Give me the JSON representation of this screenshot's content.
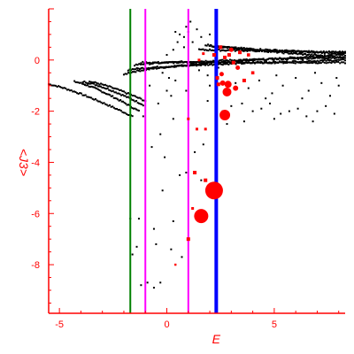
{
  "chart_data": {
    "type": "scatter",
    "xlabel": "E",
    "ylabel": "<J3>",
    "xlim": [
      -5.5,
      8.3
    ],
    "ylim": [
      -9.9,
      2.0
    ],
    "xticks": [
      -5,
      0,
      5
    ],
    "yticks": [
      0,
      -2,
      -4,
      -6,
      -8
    ],
    "xtick_labels": [
      "-5",
      "0",
      "5"
    ],
    "ytick_labels": [
      "0",
      "-2",
      "-4",
      "-6",
      "-8"
    ],
    "colors": {
      "axis": "#ff0000",
      "points": "#000000",
      "highlight": "#ff0000",
      "green_line": "#008000",
      "magenta_line": "#ff00ff",
      "blue_line": "#0000ff"
    },
    "vertical_lines": [
      {
        "x": -1.7,
        "color": "#008000",
        "width": 2
      },
      {
        "x": -1.0,
        "color": "#ff00ff",
        "width": 2
      },
      {
        "x": 1.0,
        "color": "#ff00ff",
        "width": 2
      },
      {
        "x": 2.3,
        "color": "#0000ff",
        "width": 4
      }
    ],
    "bands": [
      {
        "x0": -5.5,
        "x1": -1.6,
        "y0": -0.95,
        "y1": -2.2,
        "curv": 1.25,
        "n": 60
      },
      {
        "x0": -4.3,
        "x1": -1.3,
        "y0": -0.85,
        "y1": -2.0,
        "curv": 1.3,
        "n": 50
      },
      {
        "x0": -3.9,
        "x1": -1.1,
        "y0": -0.85,
        "y1": -1.75,
        "curv": 1.3,
        "n": 45
      },
      {
        "x0": -3.6,
        "x1": -1.0,
        "y0": -0.85,
        "y1": -1.6,
        "curv": 1.3,
        "n": 40
      },
      {
        "x0": -2.0,
        "x1": 8.3,
        "y0": -0.6,
        "y1": 0.2,
        "curv": 0.55,
        "n": 150
      },
      {
        "x0": -1.8,
        "x1": 8.3,
        "y0": -0.4,
        "y1": 0.0,
        "curv": 0.6,
        "n": 150
      },
      {
        "x0": -1.5,
        "x1": 8.3,
        "y0": -0.2,
        "y1": 0.1,
        "curv": 0.6,
        "n": 140
      },
      {
        "x0": -1.2,
        "x1": 8.3,
        "y0": -0.1,
        "y1": -0.1,
        "curv": 1.0,
        "n": 120
      },
      {
        "x0": 1.5,
        "x1": 8.3,
        "y0": 0.4,
        "y1": 0.3,
        "curv": 1.0,
        "n": 110
      },
      {
        "x0": 1.8,
        "x1": 8.3,
        "y0": 0.6,
        "y1": 0.1,
        "curv": 0.8,
        "n": 110
      },
      {
        "x0": 2.0,
        "x1": 8.3,
        "y0": 0.55,
        "y1": 0.25,
        "curv": 0.8,
        "n": 100
      }
    ],
    "points": [
      [
        -1.7,
        -6.2
      ],
      [
        -1.3,
        -6.2
      ],
      [
        -1.6,
        -7.6
      ],
      [
        -1.4,
        -7.3
      ],
      [
        -1.2,
        -8.8
      ],
      [
        -0.9,
        -8.7
      ],
      [
        -0.6,
        -8.9
      ],
      [
        -0.3,
        -8.7
      ],
      [
        -0.5,
        -7.2
      ],
      [
        -0.2,
        -5.1
      ],
      [
        0.3,
        -6.3
      ],
      [
        0.7,
        -7.7
      ],
      [
        0.2,
        -7.4
      ],
      [
        -0.6,
        -6.6
      ],
      [
        -0.7,
        -3.4
      ],
      [
        -0.3,
        -2.9
      ],
      [
        0.3,
        -2.3
      ],
      [
        -0.4,
        -1.7
      ],
      [
        -1.1,
        -2.2
      ],
      [
        0.2,
        -1.4
      ],
      [
        0.4,
        -0.8
      ],
      [
        0.1,
        -0.7
      ],
      [
        -0.8,
        -1.0
      ],
      [
        -0.2,
        -0.5
      ],
      [
        0.0,
        0.2
      ],
      [
        0.3,
        0.4
      ],
      [
        0.5,
        0.7
      ],
      [
        0.8,
        0.9
      ],
      [
        1.0,
        1.1
      ],
      [
        1.2,
        0.7
      ],
      [
        0.6,
        1.0
      ],
      [
        0.9,
        1.3
      ],
      [
        1.1,
        1.5
      ],
      [
        1.4,
        1.2
      ],
      [
        0.4,
        1.1
      ],
      [
        0.8,
        0.5
      ],
      [
        1.6,
        0.9
      ],
      [
        2.0,
        1.0
      ],
      [
        1.5,
        -0.4
      ],
      [
        1.1,
        -0.2
      ],
      [
        0.9,
        -1.2
      ],
      [
        2.0,
        -1.0
      ],
      [
        1.9,
        -1.6
      ],
      [
        2.6,
        -2.0
      ],
      [
        3.0,
        -1.8
      ],
      [
        3.5,
        -1.7
      ],
      [
        4.0,
        -2.0
      ],
      [
        4.4,
        -1.9
      ],
      [
        4.8,
        -1.7
      ],
      [
        5.3,
        -2.1
      ],
      [
        5.7,
        -2.0
      ],
      [
        6.1,
        -1.9
      ],
      [
        6.5,
        -2.2
      ],
      [
        7.0,
        -2.0
      ],
      [
        7.4,
        -1.8
      ],
      [
        7.8,
        -2.1
      ],
      [
        3.2,
        -0.9
      ],
      [
        3.8,
        -1.1
      ],
      [
        4.3,
        -0.8
      ],
      [
        4.9,
        -1.3
      ],
      [
        5.4,
        -1.0
      ],
      [
        6.0,
        -0.7
      ],
      [
        6.6,
        -1.2
      ],
      [
        7.2,
        -0.9
      ],
      [
        7.9,
        -0.7
      ],
      [
        4.6,
        -1.5
      ],
      [
        5.1,
        -0.6
      ],
      [
        6.3,
        -1.5
      ],
      [
        6.9,
        -0.5
      ],
      [
        7.6,
        -1.4
      ],
      [
        8.0,
        -1.0
      ],
      [
        2.8,
        -2.5
      ],
      [
        3.6,
        -2.4
      ],
      [
        5.0,
        -2.3
      ],
      [
        6.8,
        -2.4
      ],
      [
        2.4,
        -0.3
      ],
      [
        1.7,
        -3.3
      ],
      [
        1.3,
        -3.6
      ],
      [
        0.9,
        -4.4
      ],
      [
        1.6,
        -4.7
      ],
      [
        0.6,
        -4.5
      ],
      [
        1.9,
        -0.6
      ],
      [
        -0.1,
        -3.8
      ],
      [
        0.0,
        -1.2
      ]
    ],
    "highlight_points": [
      {
        "x": 2.2,
        "y": -5.1,
        "r": 10
      },
      {
        "x": 1.6,
        "y": -6.1,
        "r": 8
      },
      {
        "x": 2.7,
        "y": -2.15,
        "r": 6
      },
      {
        "x": 2.8,
        "y": -1.25,
        "r": 5
      },
      {
        "x": 2.85,
        "y": -0.95,
        "r": 4
      },
      {
        "x": 2.6,
        "y": -0.9,
        "r": 3
      },
      {
        "x": 3.2,
        "y": -1.1,
        "r": 3
      },
      {
        "x": 2.55,
        "y": -0.55,
        "r": 2.5
      },
      {
        "x": 3.3,
        "y": -0.3,
        "r": 2.5
      },
      {
        "x": 2.4,
        "y": -0.95,
        "r": 2
      },
      {
        "x": 3.6,
        "y": -0.8,
        "r": 2
      },
      {
        "x": 2.35,
        "y": -0.7,
        "r": 2
      },
      {
        "x": 3.0,
        "y": 0.4,
        "r": 2.5
      },
      {
        "x": 3.4,
        "y": 0.3,
        "r": 2
      },
      {
        "x": 2.7,
        "y": 0.1,
        "r": 2
      },
      {
        "x": 3.1,
        "y": -0.1,
        "r": 2
      },
      {
        "x": 2.2,
        "y": 0.2,
        "r": 2
      },
      {
        "x": 2.5,
        "y": 0.5,
        "r": 2
      },
      {
        "x": 3.8,
        "y": 0.2,
        "r": 1.8
      },
      {
        "x": 4.0,
        "y": -0.5,
        "r": 1.8
      },
      {
        "x": 2.9,
        "y": 0.2,
        "r": 2
      },
      {
        "x": 1.0,
        "y": -2.3,
        "r": 1.5
      },
      {
        "x": 1.4,
        "y": -2.7,
        "r": 1.5
      },
      {
        "x": 1.8,
        "y": -2.7,
        "r": 1.5
      },
      {
        "x": 1.3,
        "y": -4.4,
        "r": 2
      },
      {
        "x": 1.8,
        "y": -4.7,
        "r": 2
      },
      {
        "x": 1.2,
        "y": -5.8,
        "r": 1.5
      },
      {
        "x": 1.0,
        "y": -7.0,
        "r": 2
      },
      {
        "x": 0.4,
        "y": -8.0,
        "r": 1.2
      },
      {
        "x": 1.5,
        "y": 0.0,
        "r": 1.5
      },
      {
        "x": 1.7,
        "y": 0.25,
        "r": 1.5
      }
    ]
  }
}
